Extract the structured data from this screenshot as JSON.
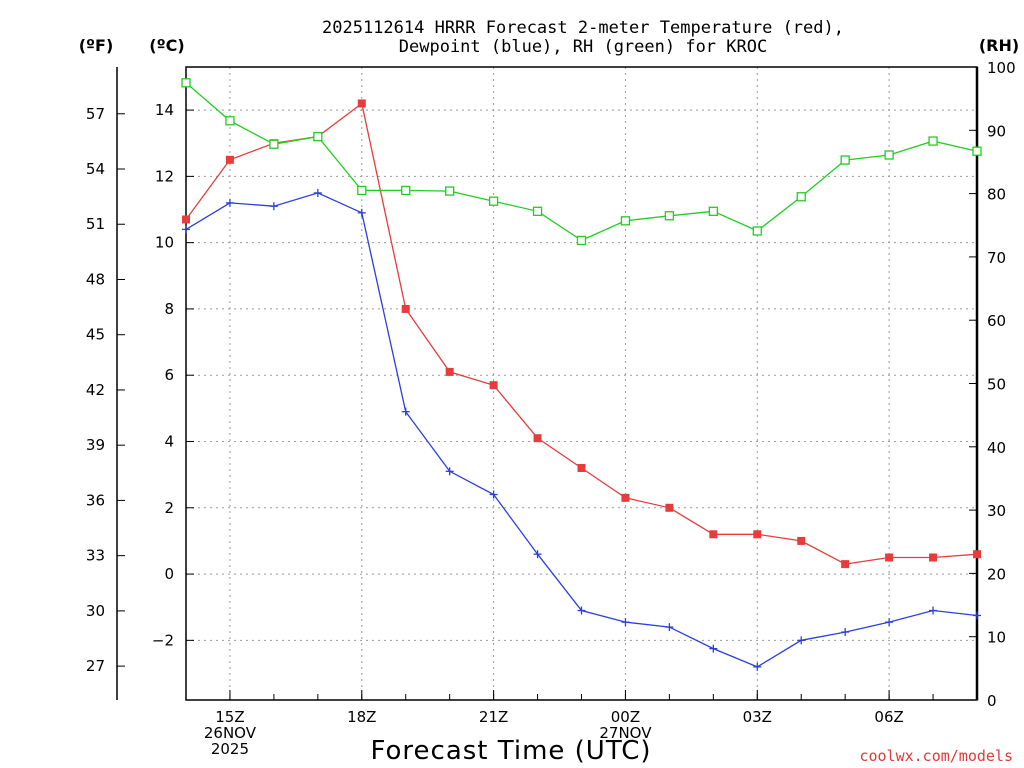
{
  "chart_data": {
    "type": "line",
    "title_line1": "2025112614 HRRR Forecast 2-meter Temperature (red),",
    "title_line2": "Dewpoint (blue), RH (green) for KROC",
    "unit_f": "(ºF)",
    "unit_c": "(ºC)",
    "unit_rh": "(RH)",
    "xlabel": "Forecast Time (UTC)",
    "credit": "coolwx.com/models",
    "x_hours": [
      14,
      15,
      16,
      17,
      18,
      19,
      20,
      21,
      22,
      23,
      24,
      25,
      26,
      27,
      28,
      29,
      30,
      31,
      32
    ],
    "x_ticks": [
      {
        "h": 15,
        "lines": [
          "15Z",
          "26NOV",
          "2025"
        ]
      },
      {
        "h": 18,
        "lines": [
          "18Z"
        ]
      },
      {
        "h": 21,
        "lines": [
          "21Z"
        ]
      },
      {
        "h": 24,
        "lines": [
          "00Z",
          "27NOV"
        ]
      },
      {
        "h": 27,
        "lines": [
          "03Z"
        ]
      },
      {
        "h": 30,
        "lines": [
          "06Z"
        ]
      }
    ],
    "c_ticks": [
      -2,
      0,
      2,
      4,
      6,
      8,
      10,
      12,
      14
    ],
    "c_ylim": [
      -3.8,
      15.3
    ],
    "f_ticks": [
      27,
      30,
      33,
      36,
      39,
      42,
      45,
      48,
      51,
      54,
      57
    ],
    "rh_ticks": [
      0,
      10,
      20,
      30,
      40,
      50,
      60,
      70,
      80,
      90,
      100
    ],
    "rh_ylim": [
      0,
      100
    ],
    "series": [
      {
        "name": "Temperature",
        "unit": "C",
        "color": "#e83c3c",
        "marker": "filled-square",
        "values": [
          10.7,
          12.5,
          13.0,
          13.2,
          14.2,
          8.0,
          6.1,
          5.7,
          4.1,
          3.2,
          2.3,
          2.0,
          1.2,
          1.2,
          1.0,
          0.3,
          0.5,
          0.5,
          0.6
        ]
      },
      {
        "name": "Dewpoint",
        "unit": "C",
        "color": "#2a3fe0",
        "marker": "plus",
        "values": [
          10.4,
          11.2,
          11.1,
          11.5,
          10.9,
          4.9,
          3.1,
          2.4,
          0.6,
          -1.1,
          -1.45,
          -1.6,
          -2.25,
          -2.8,
          -2.0,
          -1.75,
          -1.45,
          -1.1,
          -1.25
        ]
      },
      {
        "name": "RH",
        "unit": "%",
        "color": "#22cc22",
        "marker": "open-square",
        "values": [
          97.5,
          91.5,
          87.8,
          89.0,
          80.5,
          80.5,
          80.4,
          78.8,
          77.2,
          72.6,
          75.7,
          76.5,
          77.2,
          74.1,
          79.5,
          85.3,
          86.1,
          88.3,
          86.7
        ]
      }
    ]
  }
}
